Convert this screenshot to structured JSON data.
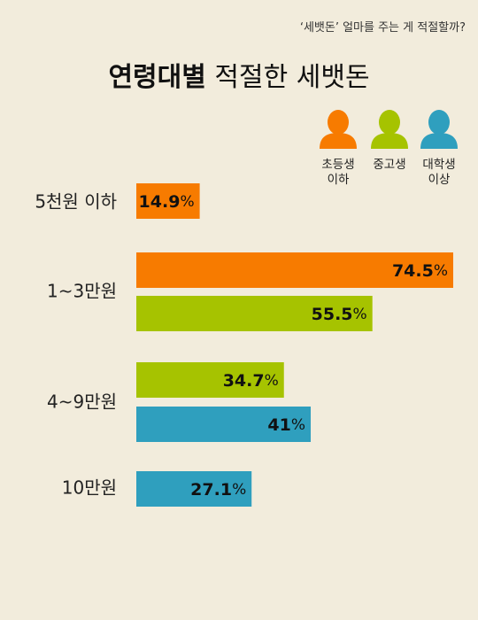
{
  "subtitle": "‘세뱃돈’ 얼마를 주는 게 적절할까?",
  "title": {
    "bold": "연령대별",
    "rest": "적절한 세뱃돈"
  },
  "legend": [
    {
      "line1": "초등생",
      "line2": "이하",
      "color": "#f77b00",
      "icon": "person-icon"
    },
    {
      "line1": "중고생",
      "line2": "",
      "color": "#a6c300",
      "icon": "person-icon"
    },
    {
      "line1": "대학생",
      "line2": "이상",
      "color": "#2f9fbe",
      "icon": "person-icon"
    }
  ],
  "chart_data": {
    "type": "bar",
    "orientation": "horizontal",
    "unit": "%",
    "categories": [
      "5천원 이하",
      "1~3만원",
      "4~9만원",
      "10만원"
    ],
    "bars": [
      {
        "category": "5천원 이하",
        "group": "초등생 이하",
        "value": 14.9,
        "label": "14.9",
        "color": "#f77b00"
      },
      {
        "category": "1~3만원",
        "group": "초등생 이하",
        "value": 74.5,
        "label": "74.5",
        "color": "#f77b00"
      },
      {
        "category": "1~3만원",
        "group": "중고생",
        "value": 55.5,
        "label": "55.5",
        "color": "#a6c300"
      },
      {
        "category": "4~9만원",
        "group": "중고생",
        "value": 34.7,
        "label": "34.7",
        "color": "#a6c300"
      },
      {
        "category": "4~9만원",
        "group": "대학생 이상",
        "value": 41,
        "label": "41",
        "color": "#2f9fbe"
      },
      {
        "category": "10만원",
        "group": "대학생 이상",
        "value": 27.1,
        "label": "27.1",
        "color": "#2f9fbe"
      }
    ]
  }
}
